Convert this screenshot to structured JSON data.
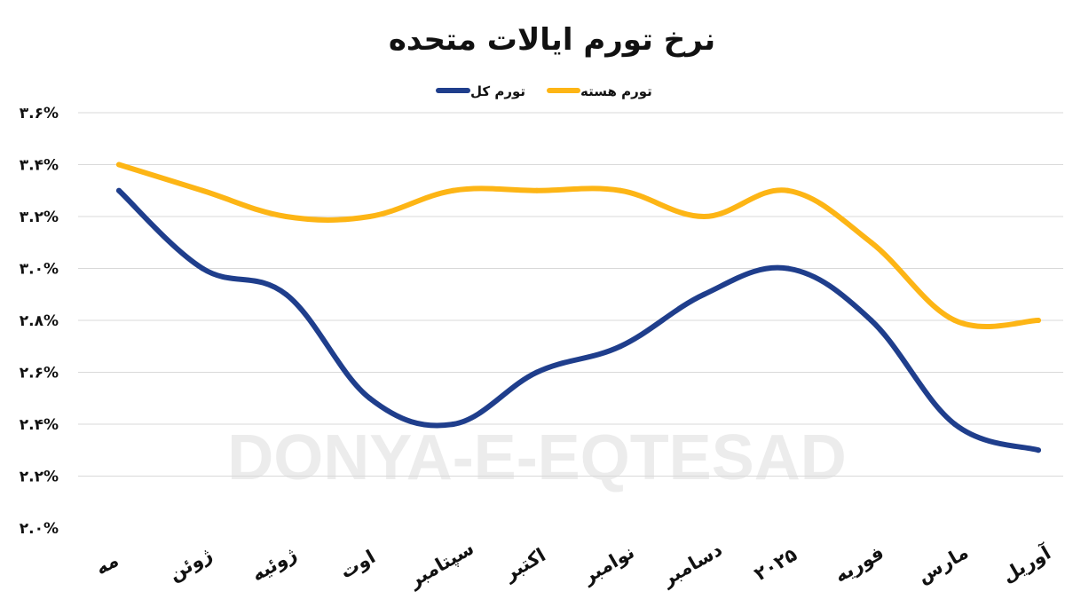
{
  "chart_data": {
    "type": "line",
    "title": "نرخ تورم ایالات متحده",
    "categories": [
      "مه",
      "ژوئن",
      "ژوئیه",
      "اوت",
      "سپتامبر",
      "اکتبر",
      "نوامبر",
      "دسامبر",
      "۲۰۲۵",
      "فوریه",
      "مارس",
      "آوریل"
    ],
    "series": [
      {
        "name": "تورم کل",
        "color": "#1f3e8c",
        "values": [
          3.3,
          3.0,
          2.9,
          2.5,
          2.4,
          2.6,
          2.7,
          2.9,
          3.0,
          2.8,
          2.4,
          2.3
        ]
      },
      {
        "name": "تورم هسته",
        "color": "#fdb515",
        "values": [
          3.4,
          3.3,
          3.2,
          3.2,
          3.3,
          3.3,
          3.3,
          3.2,
          3.3,
          3.1,
          2.8,
          2.8
        ]
      }
    ],
    "y_ticks": [
      {
        "value": 2.0,
        "label": "۲.۰%"
      },
      {
        "value": 2.2,
        "label": "۲.۲%"
      },
      {
        "value": 2.4,
        "label": "۲.۴%"
      },
      {
        "value": 2.6,
        "label": "۲.۶%"
      },
      {
        "value": 2.8,
        "label": "۲.۸%"
      },
      {
        "value": 3.0,
        "label": "۳.۰%"
      },
      {
        "value": 3.2,
        "label": "۳.۲%"
      },
      {
        "value": 3.4,
        "label": "۳.۴%"
      },
      {
        "value": 3.6,
        "label": "۳.۶%"
      }
    ],
    "ylim": [
      2.0,
      3.6
    ],
    "grid": true,
    "legend_position": "top-center",
    "watermark": "DONYA-E-EQTESAD"
  }
}
